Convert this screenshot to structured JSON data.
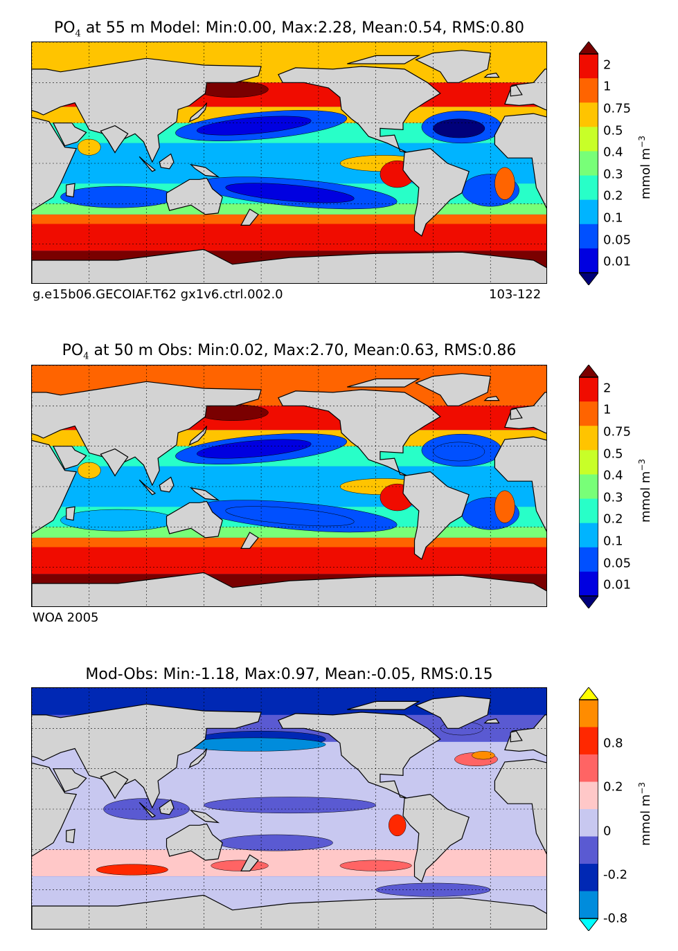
{
  "panels": [
    {
      "title_prefix": "PO",
      "title_sub": "4",
      "title_rest": " at 55 m Model: Min:0.00, Max:2.28, Mean:0.54, RMS:0.80",
      "footer_left": "g.e15b06.GECOIAF.T62 gx1v6.ctrl.002.0",
      "footer_right": "103-122",
      "colorbar": {
        "ticks": [
          "2",
          "1",
          "0.75",
          "0.5",
          "0.4",
          "0.3",
          "0.2",
          "0.1",
          "0.05",
          "0.01"
        ],
        "colors": [
          "#7a0000",
          "#f00c00",
          "#ff6400",
          "#ffc400",
          "#c8ff28",
          "#78ff78",
          "#28ffc8",
          "#00b4ff",
          "#0050ff",
          "#0000e0",
          "#00007a"
        ],
        "unit_base": "mmol m",
        "unit_exp": "−3"
      }
    },
    {
      "title_prefix": "PO",
      "title_sub": "4",
      "title_rest": " at 50 m Obs: Min:0.02, Max:2.70, Mean:0.63, RMS:0.86",
      "footer_left": "WOA 2005",
      "footer_right": "",
      "colorbar": {
        "ticks": [
          "2",
          "1",
          "0.75",
          "0.5",
          "0.4",
          "0.3",
          "0.2",
          "0.1",
          "0.05",
          "0.01"
        ],
        "colors": [
          "#7a0000",
          "#f00c00",
          "#ff6400",
          "#ffc400",
          "#c8ff28",
          "#78ff78",
          "#28ffc8",
          "#00b4ff",
          "#0050ff",
          "#0000e0",
          "#00007a"
        ],
        "unit_base": "mmol m",
        "unit_exp": "−3"
      }
    },
    {
      "title_prefix": "",
      "title_sub": "",
      "title_rest": "Mod-Obs: Min:-1.18, Max:0.97, Mean:-0.05, RMS:0.15",
      "footer_left": "",
      "footer_right": "",
      "colorbar": {
        "ticks": [
          "0.8",
          "0.2",
          "0",
          "-0.2",
          "-0.8"
        ],
        "colors": [
          "#ffff00",
          "#ff8c00",
          "#ff2800",
          "#ff6464",
          "#ffc8c8",
          "#c8c8f0",
          "#5a5ad2",
          "#0028b4",
          "#008cdc",
          "#00ffff"
        ],
        "unit_base": "mmol m",
        "unit_exp": "−3"
      }
    }
  ]
}
